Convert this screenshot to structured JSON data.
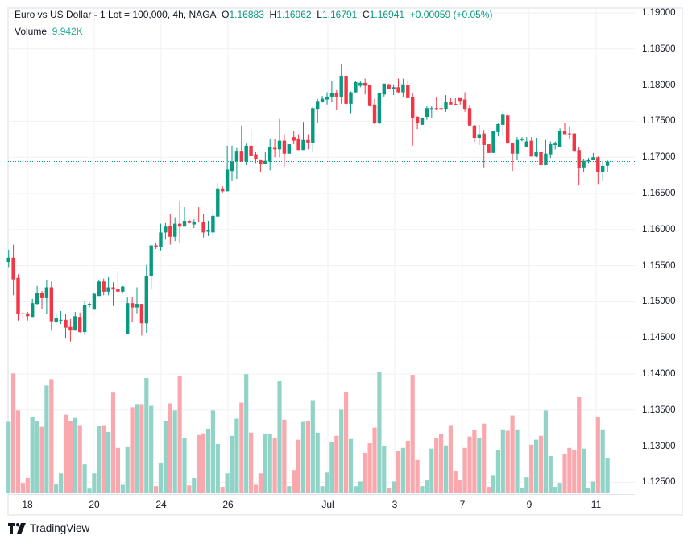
{
  "header": {
    "symbol": "Euro vs US Dollar - 1 Lot = 100,000, 4h, NAGA",
    "o_label": "O",
    "o": "1.16883",
    "h_label": "H",
    "h": "1.16962",
    "l_label": "L",
    "l": "1.16791",
    "c_label": "C",
    "c": "1.16941",
    "change": "+0.00059 (+0.05%)",
    "volume_label": "Volume",
    "volume": "9.942K"
  },
  "logo": {
    "text": "TradingView",
    "icon": "tradingview-logo-icon"
  },
  "colors": {
    "up": "#089981",
    "down": "#F23645",
    "volume_up": "#92d3c8",
    "volume_down": "#f9a9ae",
    "grid": "#f0f1f3",
    "last_price_line": "#089981"
  },
  "chart_data": {
    "type": "candlestick",
    "title": "",
    "price_axis": {
      "ylim": [
        1.1245,
        1.1915
      ],
      "ticks": [
        "1.19000",
        "1.18500",
        "1.18000",
        "1.17500",
        "1.17000",
        "1.16500",
        "1.16000",
        "1.15500",
        "1.15000",
        "1.14500",
        "1.14000",
        "1.13500",
        "1.13000",
        "1.12500"
      ]
    },
    "time_axis": {
      "ticks": [
        "18",
        "20",
        "24",
        "26",
        "Jul",
        "3",
        "7",
        "9",
        "11"
      ]
    },
    "grid": true,
    "last_price": 1.16941,
    "ohlc": [
      [
        1.1555,
        1.1572,
        1.1548,
        1.1561
      ],
      [
        1.1561,
        1.1579,
        1.1509,
        1.1531
      ],
      [
        1.1533,
        1.1538,
        1.1474,
        1.1483
      ],
      [
        1.1484,
        1.1486,
        1.1474,
        1.1483
      ],
      [
        1.1484,
        1.1486,
        1.1474,
        1.148
      ],
      [
        1.1479,
        1.1504,
        1.1479,
        1.1498
      ],
      [
        1.1497,
        1.1522,
        1.1495,
        1.1512
      ],
      [
        1.1512,
        1.1515,
        1.149,
        1.1505
      ],
      [
        1.1505,
        1.153,
        1.1483,
        1.152
      ],
      [
        1.152,
        1.1528,
        1.146,
        1.1473
      ],
      [
        1.1472,
        1.1483,
        1.147,
        1.1478
      ],
      [
        1.1474,
        1.1487,
        1.1469,
        1.1475
      ],
      [
        1.1475,
        1.1483,
        1.1449,
        1.1464
      ],
      [
        1.1465,
        1.1476,
        1.1445,
        1.146
      ],
      [
        1.146,
        1.1486,
        1.146,
        1.148
      ],
      [
        1.1479,
        1.1485,
        1.1457,
        1.1458
      ],
      [
        1.1458,
        1.1501,
        1.1454,
        1.1496
      ],
      [
        1.1496,
        1.1499,
        1.1492,
        1.1497
      ],
      [
        1.1489,
        1.1512,
        1.1489,
        1.1511
      ],
      [
        1.1508,
        1.153,
        1.1508,
        1.1528
      ],
      [
        1.1528,
        1.1532,
        1.1509,
        1.1514
      ],
      [
        1.1514,
        1.1534,
        1.1509,
        1.152
      ],
      [
        1.152,
        1.1527,
        1.1494,
        1.1517
      ],
      [
        1.1518,
        1.1543,
        1.1514,
        1.1514
      ],
      [
        1.1514,
        1.1522,
        1.1513,
        1.1521
      ],
      [
        1.1455,
        1.1506,
        1.1455,
        1.1498
      ],
      [
        1.1498,
        1.1506,
        1.1472,
        1.1492
      ],
      [
        1.1492,
        1.152,
        1.1484,
        1.1497
      ],
      [
        1.1497,
        1.1497,
        1.1453,
        1.147
      ],
      [
        1.147,
        1.1551,
        1.1457,
        1.1536
      ],
      [
        1.1536,
        1.1578,
        1.1517,
        1.1578
      ],
      [
        1.1578,
        1.1581,
        1.1573,
        1.1576
      ],
      [
        1.1576,
        1.1608,
        1.1571,
        1.1596
      ],
      [
        1.1596,
        1.1609,
        1.1586,
        1.1604
      ],
      [
        1.1605,
        1.1621,
        1.1579,
        1.159
      ],
      [
        1.159,
        1.1617,
        1.1584,
        1.1608
      ],
      [
        1.1608,
        1.164,
        1.1581,
        1.1604
      ],
      [
        1.1604,
        1.1631,
        1.1604,
        1.1612
      ],
      [
        1.1612,
        1.1614,
        1.1608,
        1.1609
      ],
      [
        1.1607,
        1.1614,
        1.1602,
        1.1611
      ],
      [
        1.1611,
        1.1631,
        1.161,
        1.161
      ],
      [
        1.1611,
        1.1621,
        1.1589,
        1.1596
      ],
      [
        1.1597,
        1.1612,
        1.1591,
        1.1599
      ],
      [
        1.1596,
        1.1629,
        1.1589,
        1.1619
      ],
      [
        1.1618,
        1.1665,
        1.1618,
        1.1657
      ],
      [
        1.1657,
        1.166,
        1.165,
        1.1653
      ],
      [
        1.1653,
        1.1716,
        1.1653,
        1.1683
      ],
      [
        1.1681,
        1.1716,
        1.1667,
        1.1694
      ],
      [
        1.1694,
        1.1713,
        1.167,
        1.1709
      ],
      [
        1.1709,
        1.1744,
        1.1694,
        1.1694
      ],
      [
        1.1694,
        1.1719,
        1.1689,
        1.1716
      ],
      [
        1.1716,
        1.1739,
        1.1702,
        1.1702
      ],
      [
        1.1704,
        1.1707,
        1.1692,
        1.1698
      ],
      [
        1.1697,
        1.1697,
        1.168,
        1.169
      ],
      [
        1.1691,
        1.1708,
        1.1691,
        1.1695
      ],
      [
        1.1694,
        1.1726,
        1.1682,
        1.1714
      ],
      [
        1.1713,
        1.1725,
        1.17,
        1.1711
      ],
      [
        1.1711,
        1.1753,
        1.17,
        1.1723
      ],
      [
        1.1723,
        1.1732,
        1.1687,
        1.1705
      ],
      [
        1.1705,
        1.1718,
        1.1705,
        1.1718
      ],
      [
        1.1728,
        1.1737,
        1.1718,
        1.1723
      ],
      [
        1.1726,
        1.1732,
        1.171,
        1.171
      ],
      [
        1.171,
        1.1749,
        1.171,
        1.1724
      ],
      [
        1.1724,
        1.1732,
        1.1711,
        1.172
      ],
      [
        1.172,
        1.1771,
        1.1707,
        1.1768
      ],
      [
        1.1767,
        1.1781,
        1.1747,
        1.1778
      ],
      [
        1.1777,
        1.1785,
        1.1776,
        1.1781
      ],
      [
        1.178,
        1.179,
        1.1773,
        1.1784
      ],
      [
        1.1784,
        1.1806,
        1.1776,
        1.1789
      ],
      [
        1.1789,
        1.1793,
        1.1766,
        1.1784
      ],
      [
        1.1784,
        1.1829,
        1.1774,
        1.1813
      ],
      [
        1.1813,
        1.1816,
        1.1768,
        1.1774
      ],
      [
        1.1774,
        1.1791,
        1.1761,
        1.179
      ],
      [
        1.179,
        1.1806,
        1.1789,
        1.1804
      ],
      [
        1.1799,
        1.1806,
        1.1797,
        1.1803
      ],
      [
        1.1803,
        1.1809,
        1.1787,
        1.1799
      ],
      [
        1.18,
        1.18,
        1.177,
        1.1772
      ],
      [
        1.1773,
        1.1781,
        1.1746,
        1.1747
      ],
      [
        1.1747,
        1.1789,
        1.1746,
        1.1789
      ],
      [
        1.1787,
        1.1802,
        1.1784,
        1.1802
      ],
      [
        1.1801,
        1.1802,
        1.1794,
        1.1794
      ],
      [
        1.1794,
        1.1801,
        1.1786,
        1.1797
      ],
      [
        1.1797,
        1.1809,
        1.1789,
        1.179
      ],
      [
        1.179,
        1.1809,
        1.1784,
        1.1801
      ],
      [
        1.18,
        1.1807,
        1.1782,
        1.1783
      ],
      [
        1.1784,
        1.1789,
        1.1716,
        1.1755
      ],
      [
        1.1756,
        1.1757,
        1.1739,
        1.1747
      ],
      [
        1.1745,
        1.1755,
        1.1745,
        1.1755
      ],
      [
        1.1756,
        1.1771,
        1.1752,
        1.1768
      ],
      [
        1.1767,
        1.1771,
        1.1755,
        1.1768
      ],
      [
        1.1768,
        1.1784,
        1.1766,
        1.1767
      ],
      [
        1.1768,
        1.1781,
        1.1767,
        1.1767
      ],
      [
        1.1767,
        1.1786,
        1.1763,
        1.1777
      ],
      [
        1.1777,
        1.1782,
        1.1773,
        1.1773
      ],
      [
        1.1774,
        1.1782,
        1.1773,
        1.1773
      ],
      [
        1.1783,
        1.1783,
        1.1773,
        1.1778
      ],
      [
        1.178,
        1.179,
        1.1763,
        1.1767
      ],
      [
        1.1768,
        1.1773,
        1.1744,
        1.1744
      ],
      [
        1.1744,
        1.1745,
        1.1721,
        1.1727
      ],
      [
        1.1727,
        1.1745,
        1.1717,
        1.1732
      ],
      [
        1.1733,
        1.1738,
        1.1686,
        1.1717
      ],
      [
        1.1718,
        1.1718,
        1.1706,
        1.1706
      ],
      [
        1.1706,
        1.1736,
        1.1706,
        1.1736
      ],
      [
        1.1735,
        1.1747,
        1.1729,
        1.1746
      ],
      [
        1.1745,
        1.1764,
        1.173,
        1.1759
      ],
      [
        1.1758,
        1.1759,
        1.1719,
        1.1719
      ],
      [
        1.172,
        1.172,
        1.1681,
        1.1705
      ],
      [
        1.1705,
        1.1728,
        1.1696,
        1.1724
      ],
      [
        1.1724,
        1.1728,
        1.1722,
        1.1725
      ],
      [
        1.1714,
        1.1728,
        1.1714,
        1.1722
      ],
      [
        1.1723,
        1.1728,
        1.1701,
        1.1701
      ],
      [
        1.1701,
        1.1727,
        1.17,
        1.1707
      ],
      [
        1.1707,
        1.1719,
        1.1689,
        1.1689
      ],
      [
        1.1689,
        1.1724,
        1.1689,
        1.1705
      ],
      [
        1.1704,
        1.1722,
        1.1699,
        1.1718
      ],
      [
        1.1717,
        1.1722,
        1.1711,
        1.1719
      ],
      [
        1.1714,
        1.174,
        1.1714,
        1.1737
      ],
      [
        1.1737,
        1.1748,
        1.1732,
        1.1732
      ],
      [
        1.1733,
        1.1743,
        1.1725,
        1.1732
      ],
      [
        1.1733,
        1.1734,
        1.1707,
        1.1709
      ],
      [
        1.171,
        1.1714,
        1.1661,
        1.1685
      ],
      [
        1.1686,
        1.1698,
        1.168,
        1.1695
      ],
      [
        1.1694,
        1.1699,
        1.1692,
        1.1697
      ],
      [
        1.1696,
        1.1706,
        1.1696,
        1.17
      ],
      [
        1.17,
        1.1701,
        1.1663,
        1.1679
      ],
      [
        1.1679,
        1.1695,
        1.1668,
        1.1688
      ],
      [
        1.16883,
        1.16962,
        1.16791,
        1.16941
      ]
    ],
    "volume_k": [
      20.0,
      33.6,
      23.2,
      2.9,
      4.3,
      21.3,
      20.2,
      18.6,
      30.2,
      32.0,
      2.7,
      5.6,
      22.0,
      20.2,
      21.1,
      19.1,
      8.1,
      1.3,
      5.6,
      18.8,
      19.1,
      17.2,
      28.2,
      12.7,
      2.4,
      12.9,
      24.1,
      25.0,
      25.0,
      32.3,
      24.5,
      2.0,
      8.6,
      20.2,
      25.2,
      23.2,
      32.9,
      15.6,
      2.2,
      4.3,
      16.3,
      16.8,
      18.1,
      23.2,
      13.8,
      1.8,
      5.6,
      16.1,
      20.9,
      25.4,
      33.4,
      17.0,
      2.4,
      5.6,
      16.6,
      16.6,
      15.6,
      31.4,
      20.6,
      2.0,
      6.5,
      15.0,
      20.0,
      20.2,
      26.1,
      17.0,
      2.0,
      5.8,
      14.3,
      16.1,
      23.4,
      28.4,
      15.2,
      2.0,
      3.3,
      11.3,
      14.0,
      18.4,
      34.1,
      13.1,
      1.5,
      3.3,
      11.8,
      12.7,
      14.7,
      33.2,
      9.3,
      2.0,
      3.6,
      12.5,
      15.4,
      16.6,
      13.4,
      19.1,
      6.1,
      3.6,
      12.7,
      15.9,
      17.7,
      15.6,
      19.5,
      1.8,
      4.9,
      12.2,
      17.9,
      17.5,
      21.8,
      17.9,
      1.5,
      4.5,
      13.6,
      15.0,
      16.1,
      23.2,
      10.4,
      1.8,
      2.9,
      11.1,
      12.7,
      12.2,
      27.0,
      12.5,
      1.5,
      3.3,
      21.3,
      17.9,
      9.942
    ]
  }
}
